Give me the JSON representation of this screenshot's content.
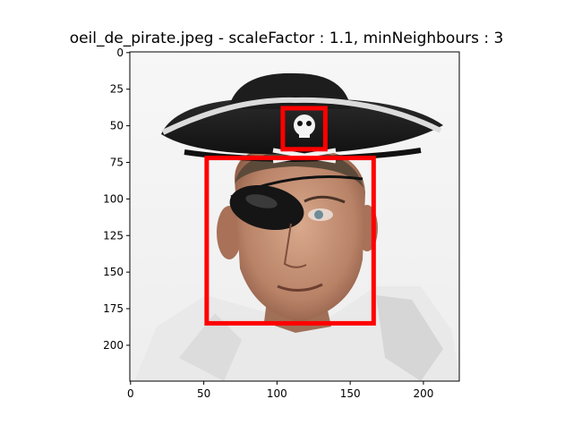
{
  "chart_data": {
    "type": "image",
    "title": "oeil_de_pirate.jpeg - scaleFactor : 1.1, minNeighbours : 3",
    "xlabel": "",
    "ylabel": "",
    "xlim": [
      -0.5,
      224.5
    ],
    "ylim": [
      224.5,
      -0.5
    ],
    "x_ticks": [
      0,
      50,
      100,
      150,
      200
    ],
    "y_ticks": [
      0,
      25,
      50,
      75,
      100,
      125,
      150,
      175,
      200
    ],
    "x_tick_labels": [
      "0",
      "50",
      "100",
      "150",
      "200"
    ],
    "y_tick_labels": [
      "0",
      "25",
      "50",
      "75",
      "100",
      "125",
      "150",
      "175",
      "200"
    ],
    "detections": [
      {
        "x": 104,
        "y": 38,
        "w": 29,
        "h": 28
      },
      {
        "x": 52,
        "y": 72,
        "w": 114,
        "h": 113
      }
    ],
    "detection_color": "#ff0000",
    "grid": false
  }
}
